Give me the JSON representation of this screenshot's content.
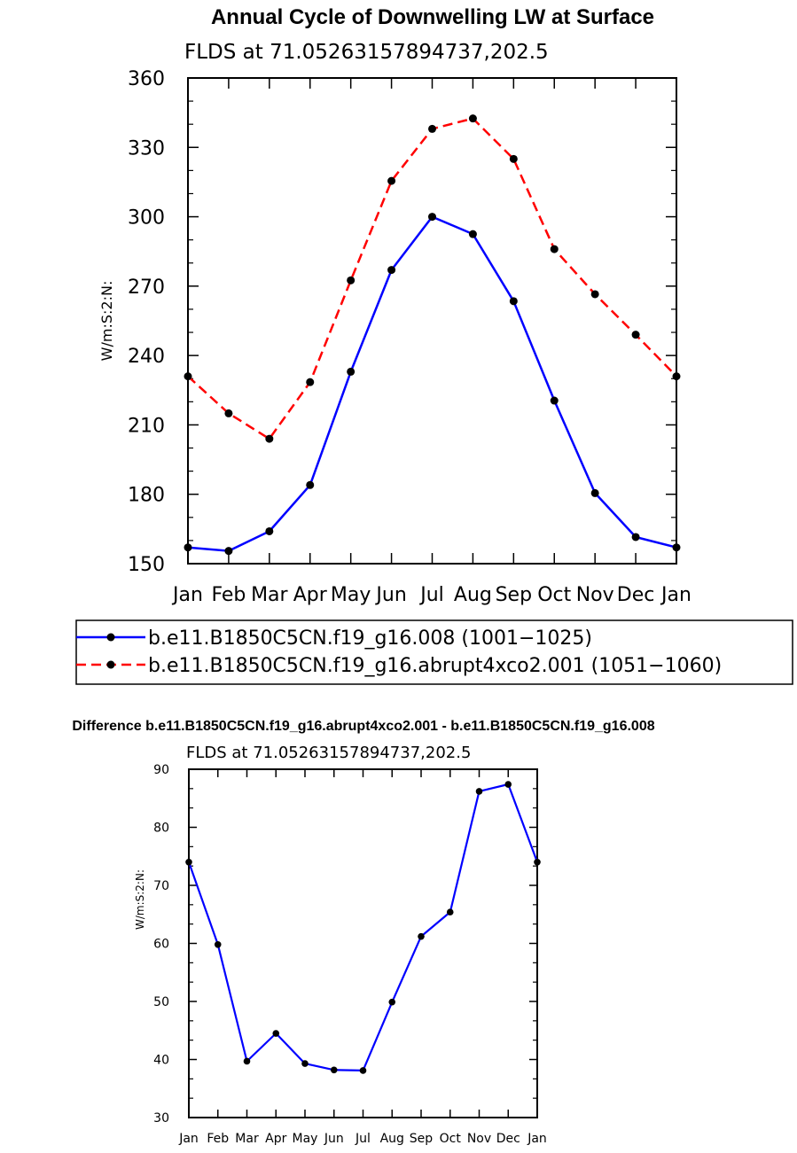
{
  "chart_data": [
    {
      "type": "line",
      "title": "Annual Cycle of Downwelling LW at Surface",
      "subtitle": "FLDS at 71.05263157894737,202.5",
      "ylabel": "W/m:S:2:N:",
      "xlabel": "",
      "ylim": [
        150,
        360
      ],
      "yticks": [
        150,
        180,
        210,
        240,
        270,
        300,
        330,
        360
      ],
      "categories": [
        "Jan",
        "Feb",
        "Mar",
        "Apr",
        "May",
        "Jun",
        "Jul",
        "Aug",
        "Sep",
        "Oct",
        "Nov",
        "Dec",
        "Jan"
      ],
      "series": [
        {
          "name": "b.e11.B1850C5CN.f19_g16.008 (1001−1025)",
          "color": "#0000ff",
          "dash": "solid",
          "values": [
            157,
            155.5,
            164,
            184,
            233,
            277,
            300,
            292.5,
            263.5,
            220.5,
            180.5,
            161.5,
            157
          ]
        },
        {
          "name": "b.e11.B1850C5CN.f19_g16.abrupt4xco2.001 (1051−1060)",
          "color": "#ff0000",
          "dash": "dashed",
          "values": [
            231,
            215,
            204,
            228.5,
            272.5,
            315.5,
            338,
            342.5,
            325,
            286,
            266.5,
            249,
            231
          ]
        }
      ],
      "legend": "below"
    },
    {
      "type": "line",
      "title": "Difference b.e11.B1850C5CN.f19_g16.abrupt4xco2.001 - b.e11.B1850C5CN.f19_g16.008",
      "subtitle": "FLDS at 71.05263157894737,202.5",
      "ylabel": "W/m:S:2:N:",
      "xlabel": "",
      "ylim": [
        30,
        90
      ],
      "yticks": [
        30,
        40,
        50,
        60,
        70,
        80,
        90
      ],
      "categories": [
        "Jan",
        "Feb",
        "Mar",
        "Apr",
        "May",
        "Jun",
        "Jul",
        "Aug",
        "Sep",
        "Oct",
        "Nov",
        "Dec",
        "Jan"
      ],
      "series": [
        {
          "name": "difference",
          "color": "#0000ff",
          "dash": "solid",
          "values": [
            74,
            59.8,
            39.7,
            44.5,
            39.3,
            38.2,
            38.1,
            49.9,
            61.2,
            65.4,
            86.2,
            87.4,
            74
          ]
        }
      ]
    }
  ]
}
